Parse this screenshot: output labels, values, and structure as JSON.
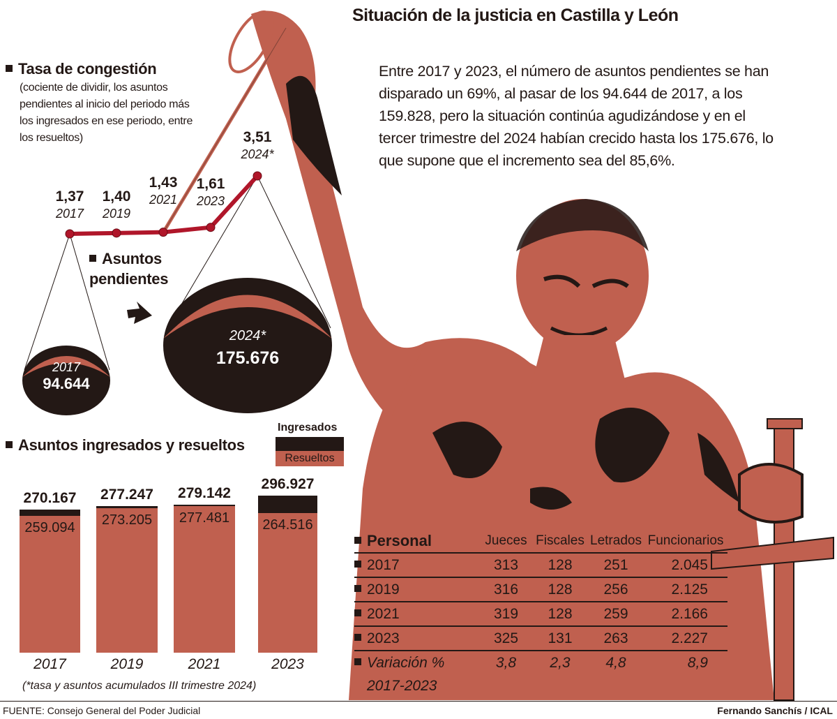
{
  "title": "Situación de la justicia en Castilla y León",
  "intro": "Entre 2017 y 2023, el número de asuntos pendientes se han disparado un 69%, al pasar de los 94.644 de 2017, a los 159.828, pero la situación continúa agudizándose y en el tercer trimestre del 2024 habían crecido hasta los 175.676, lo que supone que el incremento sea del 85,6%.",
  "colors": {
    "terracotta": "#c0604f",
    "dark": "#231815",
    "line": "#b0162a"
  },
  "congestion": {
    "title": "Tasa de congestión",
    "subtitle": "(cociente de dividir, los asuntos pendientes al inicio del periodo más los ingresados en ese periodo, entre los resueltos)"
  },
  "pendientes": {
    "title_line1": "Asuntos",
    "title_line2": "pendientes",
    "items": [
      {
        "year": "2017",
        "value": "94.644"
      },
      {
        "year": "2024*",
        "value": "175.676"
      }
    ]
  },
  "ingresados": {
    "title": "Asuntos ingresados y resueltos",
    "legend_ingresados": "Ingresados",
    "legend_resueltos": "Resueltos",
    "note": "(*tasa y asuntos acumulados III trimestre 2024)"
  },
  "chart_data": [
    {
      "type": "line",
      "title": "Tasa de congestión",
      "x": [
        "2017",
        "2019",
        "2021",
        "2023",
        "2024*"
      ],
      "values": [
        1.37,
        1.4,
        1.43,
        1.61,
        3.51
      ],
      "labels": [
        "1,37",
        "1,40",
        "1,43",
        "1,61",
        "3,51"
      ]
    },
    {
      "type": "bar",
      "title": "Asuntos ingresados y resueltos",
      "categories": [
        "2017",
        "2019",
        "2021",
        "2023"
      ],
      "series": [
        {
          "name": "Ingresados",
          "values": [
            270167,
            277247,
            279142,
            296927
          ],
          "labels": [
            "270.167",
            "277.247",
            "279.142",
            "296.927"
          ]
        },
        {
          "name": "Resueltos",
          "values": [
            259094,
            273205,
            277481,
            264516
          ],
          "labels": [
            "259.094",
            "273.205",
            "277.481",
            "264.516"
          ]
        }
      ]
    }
  ],
  "personal": {
    "title": "Personal",
    "headers": [
      "Jueces",
      "Fiscales",
      "Letrados",
      "Funcionarios"
    ],
    "rows": [
      {
        "label": "2017",
        "values": [
          "313",
          "128",
          "251",
          "2.045"
        ]
      },
      {
        "label": "2019",
        "values": [
          "316",
          "128",
          "256",
          "2.125"
        ]
      },
      {
        "label": "2021",
        "values": [
          "319",
          "128",
          "259",
          "2.166"
        ]
      },
      {
        "label": "2023",
        "values": [
          "325",
          "131",
          "263",
          "2.227"
        ]
      }
    ],
    "variation": {
      "label_line1": "Variación %",
      "label_line2": "2017-2023",
      "values": [
        "3,8",
        "2,3",
        "4,8",
        "8,9"
      ]
    }
  },
  "footer": {
    "source": "FUENTE: Consejo General del Poder Judicial",
    "credit": "Fernando Sanchís / ICAL"
  }
}
